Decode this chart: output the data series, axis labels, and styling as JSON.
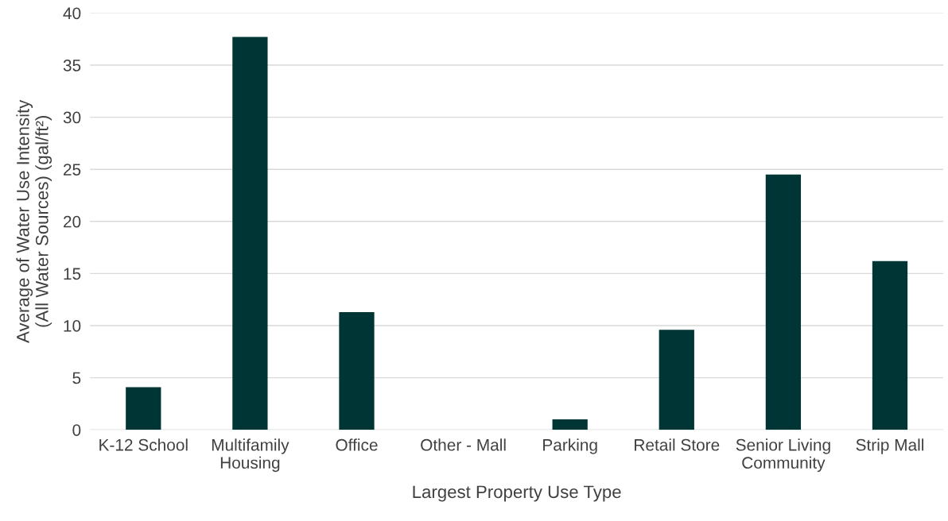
{
  "chart_data": {
    "type": "bar",
    "xlabel": "Largest Property Use Type",
    "ylabel": "Average of Water Use Intensity\n(All Water Sources) (gal/ft²)",
    "categories": [
      "K-12 School",
      "Multifamily\nHousing",
      "Office",
      "Other - Mall",
      "Parking",
      "Retail Store",
      "Senior Living\nCommunity",
      "Strip Mall"
    ],
    "values": [
      4.1,
      37.7,
      11.3,
      0,
      1.0,
      9.6,
      24.5,
      16.2
    ],
    "color": "#003535",
    "ylim": [
      0,
      40
    ],
    "yticks": [
      0,
      5,
      10,
      15,
      20,
      25,
      30,
      35,
      40
    ],
    "grid": "y"
  }
}
